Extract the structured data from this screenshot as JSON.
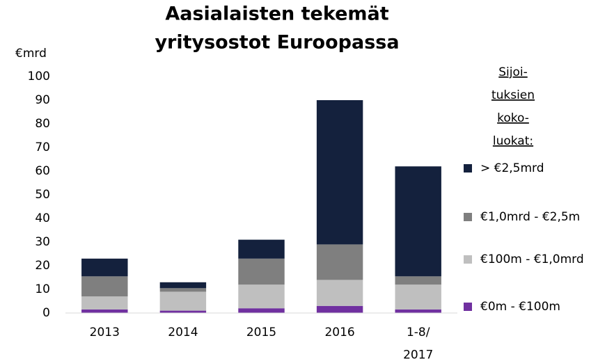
{
  "chart_data": {
    "type": "stacked_bar",
    "title": [
      "Aasialaisten tekemät",
      "yritysostot Euroopassa"
    ],
    "y_label": "€mrd",
    "categories": [
      "2013",
      "2014",
      "2015",
      "2016",
      "1-8/ 2017"
    ],
    "series": [
      {
        "name": "€0m - €100m",
        "color": "#7030a0",
        "values": [
          1.5,
          1,
          2,
          3,
          1.5
        ]
      },
      {
        "name": "€100m - €1,0mrd",
        "color": "#bfbfbf",
        "values": [
          5.5,
          8,
          10,
          11,
          10.5
        ]
      },
      {
        "name": "€1,0mrd - €2,5m",
        "color": "#7f7f7f",
        "values": [
          8.5,
          1.5,
          11,
          15,
          3.5
        ]
      },
      {
        "name": "> €2,5mrd",
        "color": "#14213d",
        "values": [
          7.5,
          2.5,
          8,
          61,
          46.5
        ]
      }
    ],
    "legend_title": [
      "Sijoi-",
      "tuksien",
      "koko-",
      "luokat:"
    ],
    "ylim": [
      0,
      100
    ],
    "yticks": [
      0,
      10,
      20,
      30,
      40,
      50,
      60,
      70,
      80,
      90,
      100
    ],
    "grid": false
  }
}
